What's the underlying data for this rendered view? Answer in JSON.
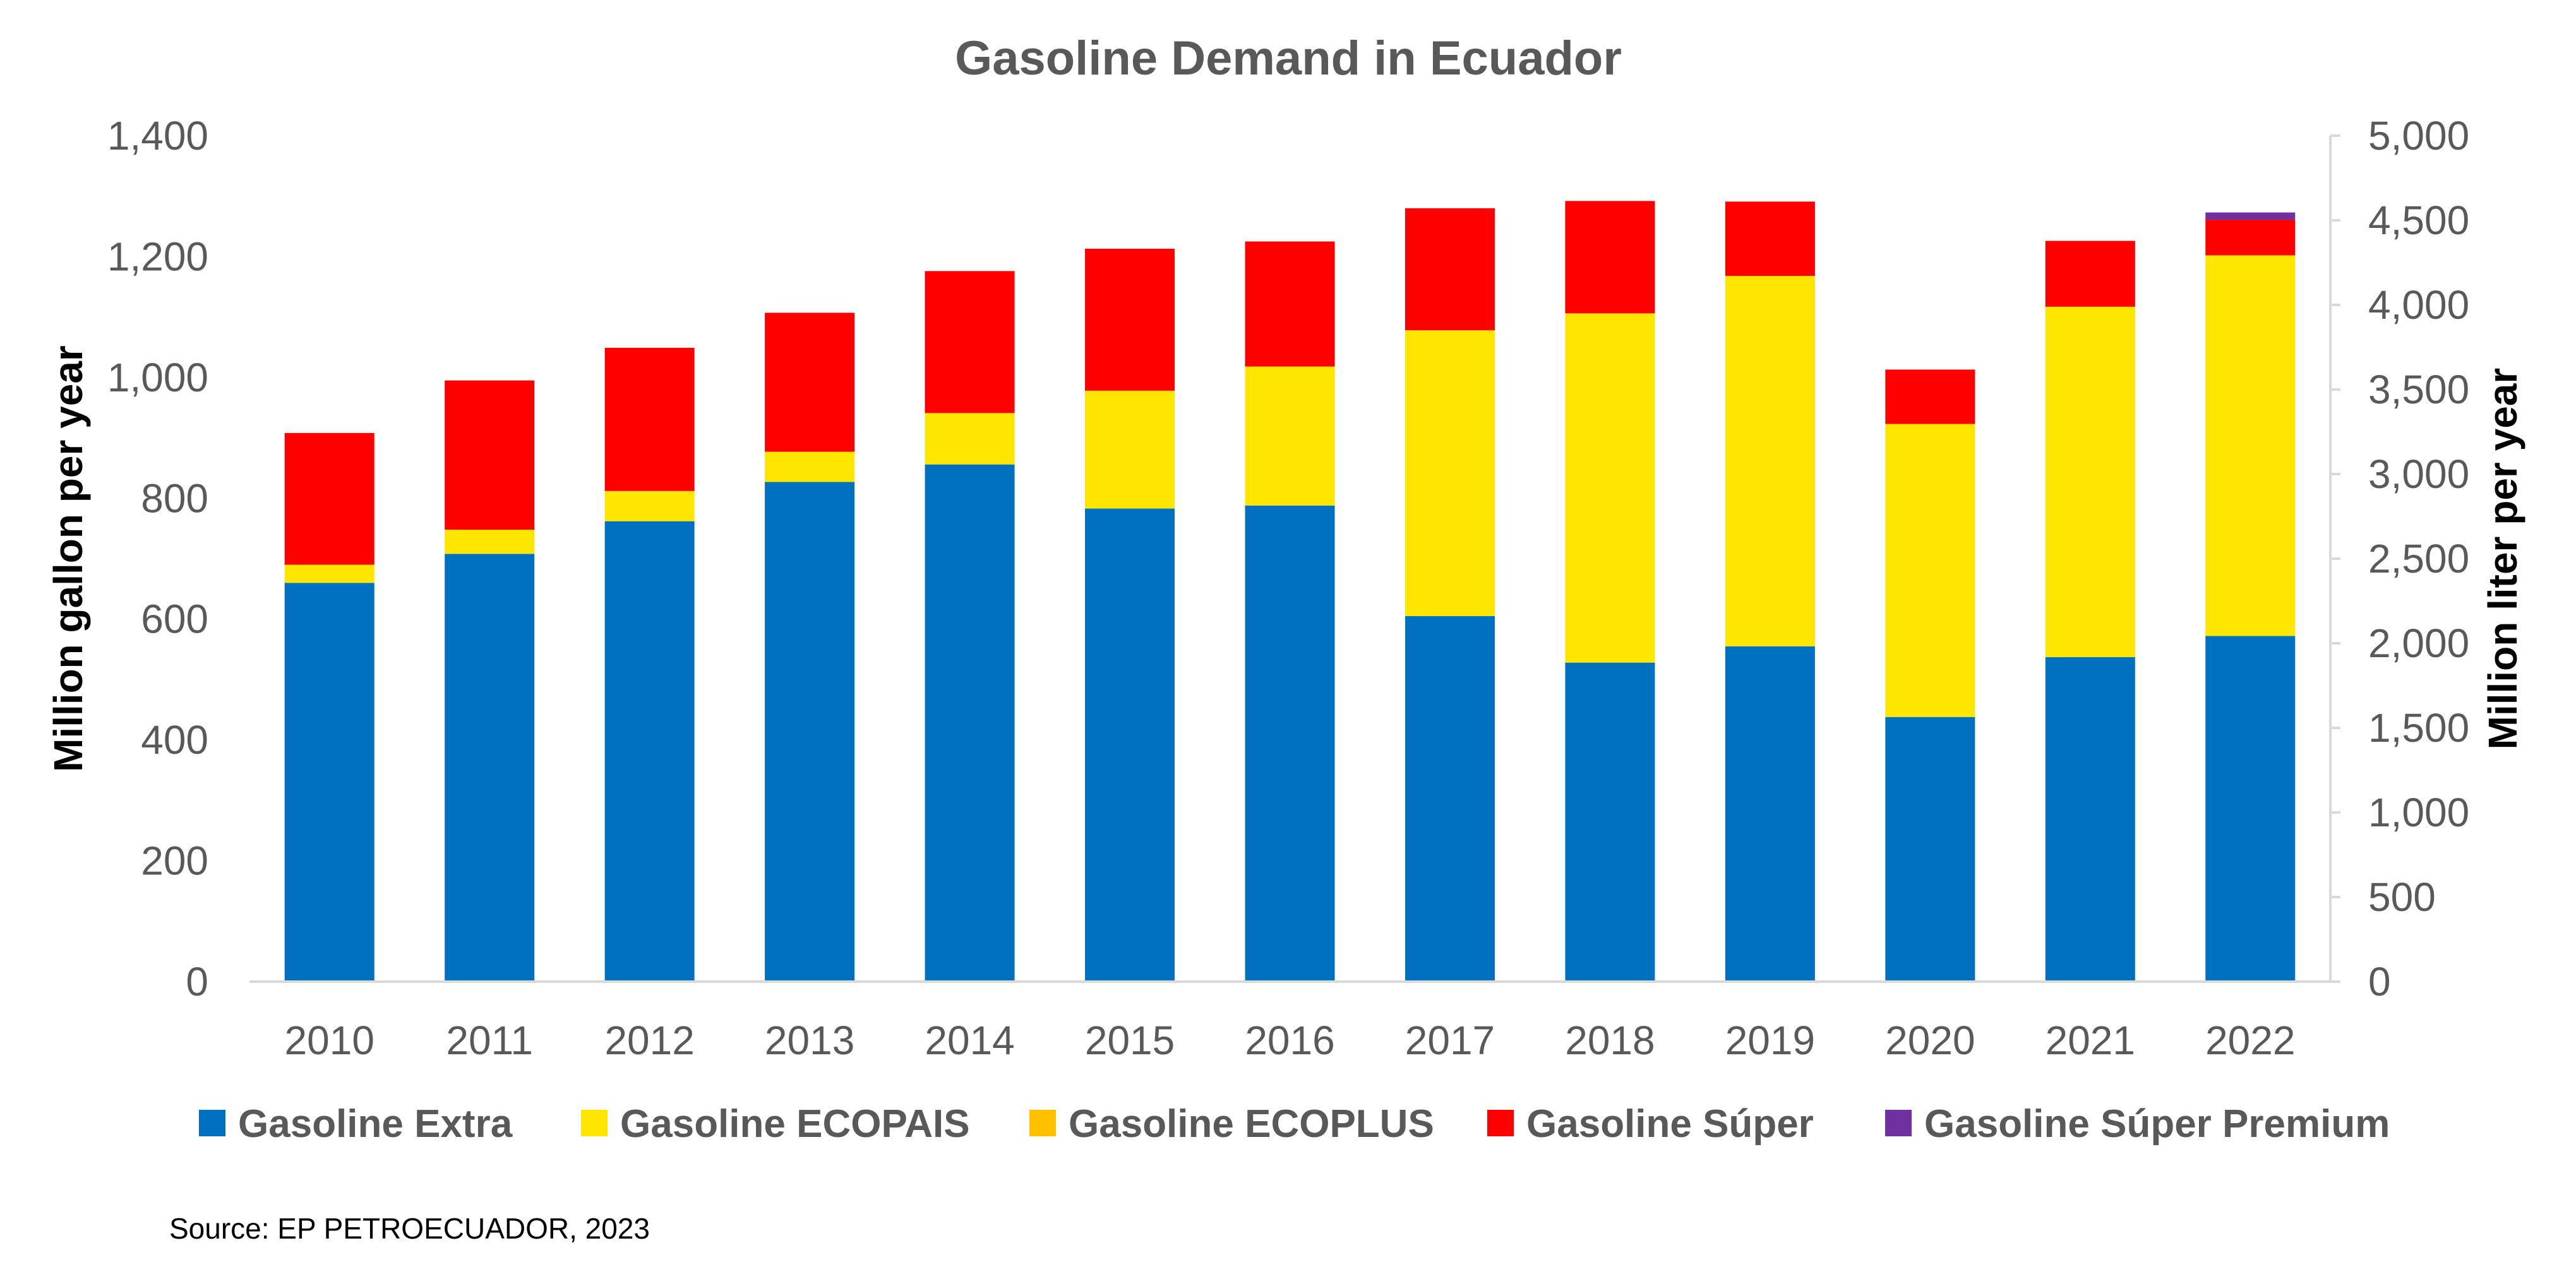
{
  "chart_data": {
    "type": "bar",
    "stacked": true,
    "title": "Gasoline Demand in Ecuador",
    "ylabel": "Million gallon per year",
    "y2label": "Million liter per year",
    "xlabel": "",
    "ylim": [
      0,
      1400
    ],
    "y2lim": [
      0,
      5000
    ],
    "yticks": [
      "0",
      "200",
      "400",
      "600",
      "800",
      "1,000",
      "1,200",
      "1,400"
    ],
    "y2ticks": [
      "0",
      "500",
      "1,000",
      "1,500",
      "2,000",
      "2,500",
      "3,000",
      "3,500",
      "4,000",
      "4,500",
      "5,000"
    ],
    "grid": false,
    "legend_position": "bottom",
    "categories": [
      "2010",
      "2011",
      "2012",
      "2013",
      "2014",
      "2015",
      "2016",
      "2017",
      "2018",
      "2019",
      "2020",
      "2021",
      "2022"
    ],
    "series": [
      {
        "name": "Gasoline Extra",
        "color": "#0070C0",
        "values": [
          660,
          708,
          762,
          827,
          856,
          783,
          788,
          605,
          528,
          555,
          438,
          537,
          572
        ]
      },
      {
        "name": "Gasoline ECOPAIS",
        "color": "#FFE600",
        "values": [
          30,
          40,
          50,
          50,
          85,
          195,
          230,
          473,
          578,
          613,
          485,
          580,
          630
        ]
      },
      {
        "name": "Gasoline ECOPLUS",
        "color": "#FFC000",
        "values": [
          0,
          0,
          0,
          0,
          0,
          0,
          0,
          0,
          0,
          0,
          0,
          0,
          0
        ]
      },
      {
        "name": "Gasoline Súper",
        "color": "#FF0000",
        "values": [
          218,
          247,
          237,
          230,
          235,
          235,
          207,
          202,
          186,
          123,
          90,
          109,
          59
        ]
      },
      {
        "name": "Gasoline Súper Premium",
        "color": "#7030A0",
        "values": [
          0,
          0,
          0,
          0,
          0,
          0,
          0,
          0,
          0,
          0,
          0,
          0,
          12
        ]
      }
    ],
    "source": "Source: EP PETROECUADOR, 2023"
  }
}
